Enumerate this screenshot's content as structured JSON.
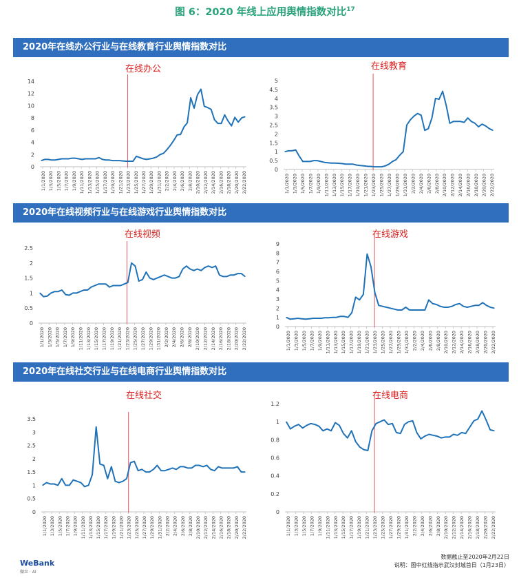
{
  "figure": {
    "title": "图 6：2020 年线上应用舆情指数对比",
    "footnote_mark": "17"
  },
  "bands": [
    "2020年在线办公行业与在线教育行业舆情指数对比",
    "2020年在线视频行业与在线游戏行业舆情指数对比",
    "2020年在线社交行业与在线电商行业舆情指数对比"
  ],
  "footer": {
    "logo": "WeBank",
    "logo_sub": "微众 · AI",
    "note1": "数据截止至2020年2月22日",
    "note2": "说明：图中红线指示武汉封城首日（1月23日）"
  },
  "colors": {
    "line": "#1f72b8",
    "marker": "#e8535b",
    "axis": "#bfbfbf",
    "band": "#2f6fbe",
    "title": "#2aa27c",
    "chart_title": "#d9201e"
  },
  "chart_data": [
    {
      "type": "line",
      "title": "在线办公",
      "ylim": [
        0,
        14
      ],
      "yticks": [
        0,
        2,
        4,
        6,
        8,
        10,
        12,
        14
      ],
      "xticks": [
        "1/1/2020",
        "1/3/2020",
        "1/5/2020",
        "1/7/2020",
        "1/9/2020",
        "1/11/2020",
        "1/13/2020",
        "1/15/2020",
        "1/17/2020",
        "1/19/2020",
        "1/21/2020",
        "1/23/2020",
        "1/25/2020",
        "1/27/2020",
        "1/29/2020",
        "1/31/2020",
        "2/2/2020",
        "2/4/2020",
        "2/6/2020",
        "2/8/2020",
        "2/10/2020",
        "2/12/2020",
        "2/14/2020",
        "2/16/2020",
        "2/18/2020",
        "2/20/2020",
        "2/22/2020"
      ],
      "marker_date": "1/23/2020",
      "values": [
        1.0,
        1.2,
        1.2,
        1.1,
        1.1,
        1.2,
        1.3,
        1.3,
        1.3,
        1.4,
        1.4,
        1.3,
        1.2,
        1.3,
        1.3,
        1.3,
        1.3,
        1.5,
        1.2,
        1.1,
        1.1,
        1.0,
        1.0,
        1.0,
        0.95,
        0.9,
        0.9,
        0.9,
        1.7,
        1.5,
        1.3,
        1.2,
        1.3,
        1.4,
        1.6,
        2.0,
        2.2,
        2.8,
        3.5,
        4.3,
        5.2,
        5.3,
        6.5,
        7.2,
        11.3,
        9.6,
        11.8,
        12.7,
        9.9,
        9.7,
        9.4,
        7.7,
        7.1,
        7.1,
        8.5,
        7.5,
        6.7,
        8.1,
        7.3,
        8.0,
        8.2
      ]
    },
    {
      "type": "line",
      "title": "在线教育",
      "ylim": [
        0,
        5
      ],
      "yticks": [
        0,
        0.5,
        1,
        1.5,
        2,
        2.5,
        3,
        3.5,
        4,
        4.5,
        5
      ],
      "xticks": [
        "1/1/2020",
        "1/3/2020",
        "1/5/2020",
        "1/7/2020",
        "1/9/2020",
        "1/11/2020",
        "1/13/2020",
        "1/15/2020",
        "1/17/2020",
        "1/19/2020",
        "1/21/2020",
        "1/23/2020",
        "1/25/2020",
        "1/27/2020",
        "1/29/2020",
        "1/31/2020",
        "2/2/2020",
        "2/4/2020",
        "2/6/2020",
        "2/8/2020",
        "2/10/2020",
        "2/12/2020",
        "2/14/2020",
        "2/16/2020",
        "2/18/2020",
        "2/20/2020",
        "2/22/2020"
      ],
      "marker_date": "1/23/2020",
      "values": [
        1.0,
        1.05,
        1.05,
        1.1,
        0.75,
        0.45,
        0.45,
        0.45,
        0.5,
        0.5,
        0.45,
        0.4,
        0.38,
        0.36,
        0.36,
        0.35,
        0.33,
        0.3,
        0.3,
        0.3,
        0.25,
        0.22,
        0.2,
        0.18,
        0.17,
        0.15,
        0.15,
        0.15,
        0.2,
        0.3,
        0.45,
        0.55,
        0.8,
        1.0,
        2.5,
        2.8,
        3.0,
        3.15,
        3.05,
        2.2,
        2.3,
        2.9,
        4.0,
        3.95,
        4.4,
        3.6,
        2.6,
        2.7,
        2.7,
        2.7,
        2.65,
        2.9,
        2.7,
        2.6,
        2.4,
        2.55,
        2.45,
        2.3,
        2.2
      ]
    },
    {
      "type": "line",
      "title": "在线视频",
      "ylim": [
        0,
        2.5
      ],
      "yticks": [
        0,
        0.5,
        1,
        1.5,
        2,
        2.5
      ],
      "xticks": [
        "1/1/2020",
        "1/3/2020",
        "1/5/2020",
        "1/7/2020",
        "1/9/2020",
        "1/11/2020",
        "1/13/2020",
        "1/15/2020",
        "1/17/2020",
        "1/19/2020",
        "1/21/2020",
        "1/23/2020",
        "1/25/2020",
        "1/27/2020",
        "1/29/2020",
        "1/31/2020",
        "2/2/2020",
        "2/4/2020",
        "2/6/2020",
        "2/8/2020",
        "2/10/2020",
        "2/12/2020",
        "2/14/2020",
        "2/16/2020",
        "2/18/2020",
        "2/20/2020",
        "2/22/2020"
      ],
      "marker_date": "1/23/2020",
      "values": [
        1.0,
        0.88,
        0.9,
        1.0,
        1.05,
        1.05,
        1.1,
        0.95,
        0.93,
        1.0,
        1.0,
        1.05,
        1.1,
        1.1,
        1.2,
        1.25,
        1.3,
        1.3,
        1.3,
        1.2,
        1.25,
        1.25,
        1.25,
        1.3,
        1.35,
        2.0,
        1.9,
        1.4,
        1.45,
        1.7,
        1.5,
        1.45,
        1.5,
        1.55,
        1.6,
        1.55,
        1.5,
        1.5,
        1.55,
        1.8,
        1.9,
        1.8,
        1.75,
        1.8,
        1.75,
        1.85,
        1.9,
        1.85,
        1.9,
        1.6,
        1.55,
        1.55,
        1.6,
        1.6,
        1.65,
        1.65,
        1.55
      ]
    },
    {
      "type": "line",
      "title": "在线游戏",
      "ylim": [
        0,
        9
      ],
      "yticks": [
        0,
        1,
        2,
        3,
        4,
        5,
        6,
        7,
        8,
        9
      ],
      "xticks": [
        "1/1/2020",
        "1/3/2020",
        "1/5/2020",
        "1/7/2020",
        "1/9/2020",
        "1/11/2020",
        "1/13/2020",
        "1/15/2020",
        "1/17/2020",
        "1/19/2020",
        "1/21/2020",
        "1/23/2020",
        "1/25/2020",
        "1/27/2020",
        "1/29/2020",
        "1/31/2020",
        "2/2/2020",
        "2/4/2020",
        "2/6/2020",
        "2/8/2020",
        "2/10/2020",
        "2/12/2020",
        "2/14/2020",
        "2/16/2020",
        "2/18/2020",
        "2/20/2020",
        "2/22/2020"
      ],
      "marker_date": "1/23/2020",
      "values": [
        1.0,
        0.8,
        0.85,
        0.9,
        0.85,
        0.8,
        0.85,
        0.9,
        0.9,
        0.9,
        0.95,
        0.95,
        1.0,
        1.0,
        1.1,
        1.1,
        1.0,
        1.5,
        3.2,
        2.9,
        3.5,
        7.9,
        6.5,
        3.7,
        2.3,
        2.2,
        2.1,
        2.0,
        1.9,
        1.8,
        1.8,
        2.1,
        1.8,
        1.8,
        1.8,
        1.8,
        1.8,
        2.9,
        2.5,
        2.4,
        2.2,
        2.1,
        2.1,
        2.2,
        2.4,
        2.5,
        2.2,
        2.1,
        2.2,
        2.3,
        2.3,
        2.6,
        2.3,
        2.1,
        2.0
      ]
    },
    {
      "type": "line",
      "title": "在线社交",
      "ylim": [
        0,
        3.5
      ],
      "yticks": [
        0,
        0.5,
        1,
        1.5,
        2,
        2.5,
        3,
        3.5
      ],
      "xticks": [
        "1/1/2020",
        "1/3/2020",
        "1/5/2020",
        "1/7/2020",
        "1/9/2020",
        "1/11/2020",
        "1/13/2020",
        "1/15/2020",
        "1/17/2020",
        "1/19/2020",
        "1/21/2020",
        "1/23/2020",
        "1/25/2020",
        "1/27/2020",
        "1/29/2020",
        "1/31/2020",
        "2/2/2020",
        "2/4/2020",
        "2/6/2020",
        "2/8/2020",
        "2/10/2020",
        "2/12/2020",
        "2/14/2020",
        "2/16/2020",
        "2/18/2020",
        "2/20/2020",
        "2/22/2020"
      ],
      "marker_date": "1/23/2020",
      "values": [
        1.0,
        1.1,
        1.05,
        1.05,
        1.0,
        1.25,
        1.0,
        1.0,
        1.2,
        1.15,
        1.1,
        0.95,
        1.0,
        1.4,
        3.2,
        1.8,
        1.75,
        1.25,
        1.7,
        1.15,
        1.1,
        1.15,
        1.25,
        1.85,
        1.9,
        1.55,
        1.6,
        1.5,
        1.5,
        1.6,
        1.75,
        1.55,
        1.55,
        1.6,
        1.65,
        1.6,
        1.7,
        1.7,
        1.65,
        1.65,
        1.75,
        1.75,
        1.7,
        1.75,
        1.6,
        1.55,
        1.7,
        1.65,
        1.65,
        1.65,
        1.65,
        1.7,
        1.5,
        1.5
      ]
    },
    {
      "type": "line",
      "title": "在线电商",
      "ylim": [
        0,
        1.2
      ],
      "yticks": [
        0,
        0.2,
        0.4,
        0.6,
        0.8,
        1,
        1.2
      ],
      "xticks": [
        "1/1/2020",
        "1/3/2020",
        "1/5/2020",
        "1/7/2020",
        "1/9/2020",
        "1/11/2020",
        "1/13/2020",
        "1/15/2020",
        "1/17/2020",
        "1/19/2020",
        "1/21/2020",
        "1/23/2020",
        "1/25/2020",
        "1/27/2020",
        "1/29/2020",
        "1/31/2020",
        "2/2/2020",
        "2/4/2020",
        "2/6/2020",
        "2/8/2020",
        "2/10/2020",
        "2/12/2020",
        "2/14/2020",
        "2/16/2020",
        "2/18/2020",
        "2/20/2020",
        "2/22/2020"
      ],
      "marker_date": "1/23/2020",
      "values": [
        1.0,
        0.92,
        0.95,
        0.97,
        0.93,
        0.96,
        0.98,
        0.97,
        0.95,
        0.9,
        0.92,
        0.9,
        0.99,
        0.96,
        0.87,
        0.82,
        0.9,
        0.78,
        0.72,
        0.69,
        0.68,
        0.9,
        0.98,
        1.0,
        1.02,
        0.97,
        0.98,
        0.88,
        0.87,
        0.97,
        1.0,
        1.01,
        0.88,
        0.81,
        0.84,
        0.86,
        0.85,
        0.84,
        0.82,
        0.83,
        0.83,
        0.86,
        0.85,
        0.88,
        0.87,
        0.94,
        1.01,
        1.03,
        1.12,
        1.02,
        0.91,
        0.9
      ]
    }
  ]
}
